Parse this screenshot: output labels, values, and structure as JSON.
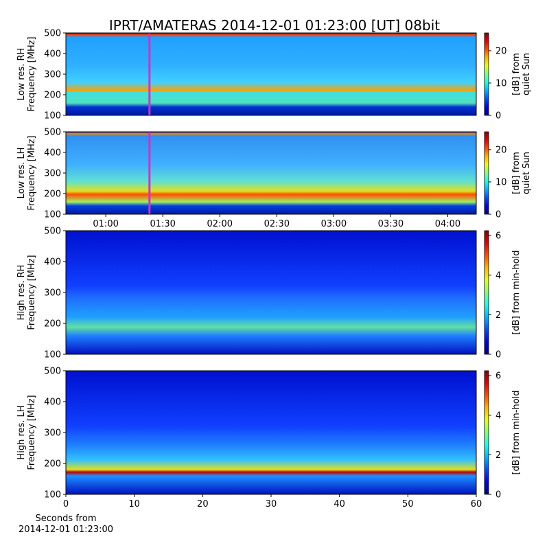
{
  "chart_data": [
    {
      "type": "heatmap",
      "title": "IPRT/AMATERAS 2014-12-01 01:23:00 [UT]   08bit",
      "ylabel": [
        "Low res. RH",
        "Frequency [MHz]"
      ],
      "ylim": [
        100,
        500
      ],
      "yticks": [
        100,
        200,
        300,
        400,
        500
      ],
      "xlim": [
        39,
        255
      ],
      "marker_x": 83,
      "marker_color": "#cc33cc",
      "colormap": "jet",
      "clim": [
        0,
        25.5
      ],
      "cticks": [
        0,
        10,
        20
      ],
      "colorbar_label": [
        "[dB] from",
        "quiet Sun"
      ]
    },
    {
      "type": "heatmap",
      "ylabel": [
        "Low res. LH",
        "Frequency [MHz]"
      ],
      "ylim": [
        100,
        500
      ],
      "yticks": [
        100,
        200,
        300,
        400,
        500
      ],
      "xlim": [
        39,
        255
      ],
      "xticks": [
        {
          "value": 60,
          "label": "01:00"
        },
        {
          "value": 90,
          "label": "01:30"
        },
        {
          "value": 120,
          "label": "02:00"
        },
        {
          "value": 150,
          "label": "02:30"
        },
        {
          "value": 180,
          "label": "03:00"
        },
        {
          "value": 210,
          "label": "03:30"
        },
        {
          "value": 240,
          "label": "04:00"
        }
      ],
      "marker_x": 83,
      "marker_color": "#cc33cc",
      "colormap": "jet",
      "clim": [
        0,
        25.5
      ],
      "cticks": [
        0,
        10,
        20
      ],
      "colorbar_label": [
        "[dB] from",
        "quiet Sun"
      ]
    },
    {
      "type": "heatmap",
      "ylabel": [
        "High res. RH",
        "Frequency [MHz]"
      ],
      "ylim": [
        100,
        500
      ],
      "yticks": [
        100,
        200,
        300,
        400,
        500
      ],
      "xlim": [
        0,
        60
      ],
      "colormap": "jet",
      "clim": [
        0,
        6.25
      ],
      "cticks": [
        0,
        2,
        4,
        6
      ],
      "colorbar_label": [
        "[dB] from min-hold"
      ]
    },
    {
      "type": "heatmap",
      "ylabel": [
        "High res. LH",
        "Frequency [MHz]"
      ],
      "ylim": [
        100,
        500
      ],
      "yticks": [
        100,
        200,
        300,
        400,
        500
      ],
      "xlim": [
        0,
        60
      ],
      "xticks": [
        0,
        10,
        20,
        30,
        40,
        50,
        60
      ],
      "xlabel": [
        "Seconds from",
        "2014-12-01 01:23:00"
      ],
      "colormap": "jet",
      "clim": [
        0,
        6.25
      ],
      "cticks": [
        0,
        2,
        4,
        6
      ],
      "colorbar_label": [
        "[dB] from min-hold"
      ]
    }
  ]
}
